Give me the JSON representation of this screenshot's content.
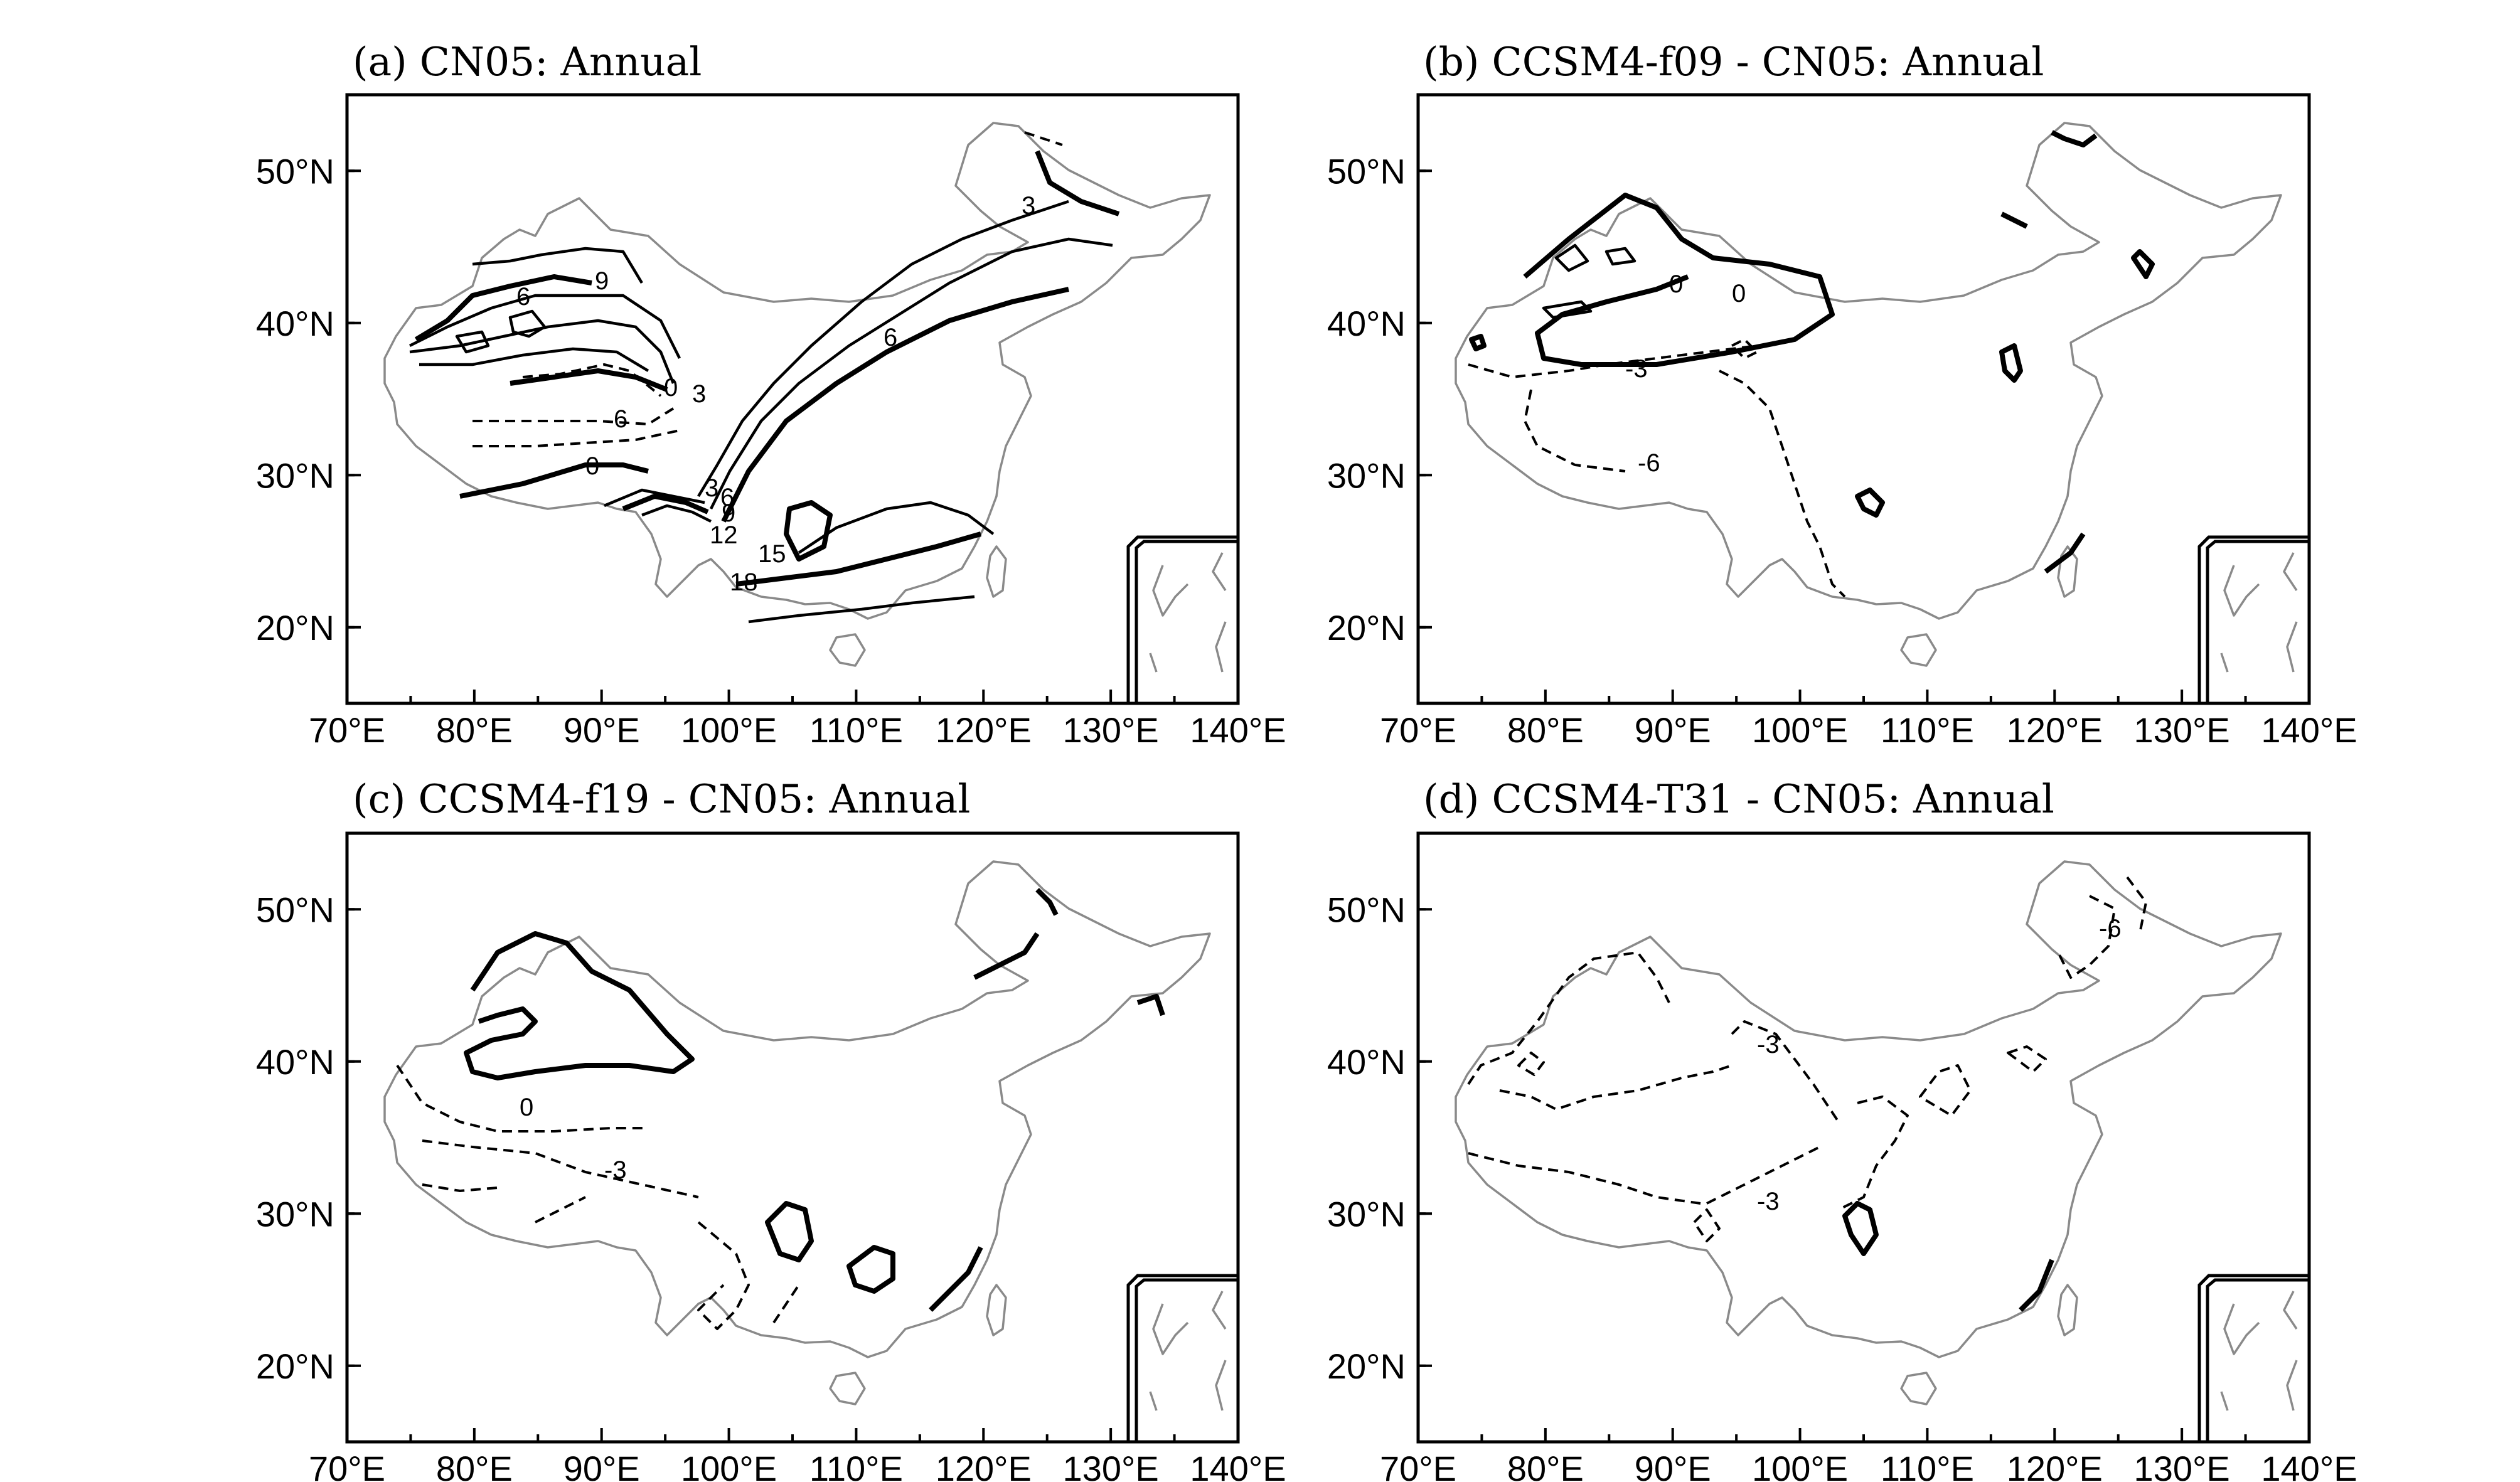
{
  "figure": {
    "panels": [
      {
        "id": "a",
        "title": "(a) CN05: Annual",
        "contour_labels": [
          "3",
          "6",
          "9",
          "6",
          "0",
          "3",
          "6",
          "0",
          "3",
          "6",
          "9",
          "12",
          "15",
          "18"
        ]
      },
      {
        "id": "b",
        "title": "(b) CCSM4-f09 - CN05: Annual",
        "contour_labels": [
          "0",
          "0",
          "-3",
          "-6"
        ]
      },
      {
        "id": "c",
        "title": "(c) CCSM4-f19 - CN05: Annual",
        "contour_labels": [
          "0",
          "-3"
        ]
      },
      {
        "id": "d",
        "title": "(d) CCSM4-T31 - CN05: Annual",
        "contour_labels": [
          "-6",
          "-3",
          "-3"
        ]
      }
    ],
    "lon_ticks": [
      "70°E",
      "80°E",
      "90°E",
      "100°E",
      "110°E",
      "120°E",
      "130°E",
      "140°E"
    ],
    "lat_ticks": [
      "20°N",
      "30°N",
      "40°N",
      "50°N"
    ],
    "map_extent": {
      "lon": [
        70,
        140
      ],
      "lat": [
        15,
        55
      ]
    },
    "line_colors": {
      "border": "#8a8a8a",
      "contour": "#000000"
    }
  }
}
